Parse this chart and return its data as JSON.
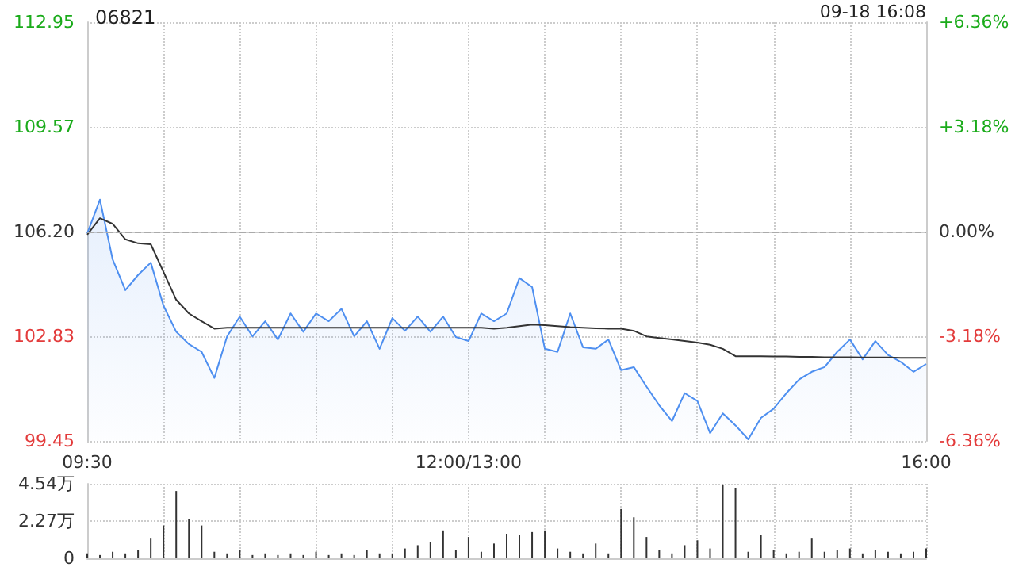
{
  "chart_data": [
    {
      "type": "line",
      "title": "06821",
      "annotations": [
        "09-18 16:08"
      ],
      "categories": [
        "09:30",
        null,
        null,
        null,
        null,
        null,
        null,
        null,
        null,
        null,
        null,
        null,
        null,
        null,
        null,
        null,
        null,
        null,
        null,
        null,
        null,
        null,
        null,
        null,
        null,
        null,
        null,
        null,
        null,
        null,
        "12:00/13:00",
        null,
        null,
        null,
        null,
        null,
        null,
        null,
        null,
        null,
        null,
        null,
        null,
        null,
        null,
        null,
        null,
        null,
        null,
        null,
        null,
        null,
        null,
        null,
        null,
        null,
        null,
        null,
        null,
        null,
        null,
        null,
        null,
        null,
        null,
        null,
        "16:00"
      ],
      "ylim": [
        99.45,
        112.95
      ],
      "yticks": [
        99.45,
        102.83,
        {
          "value": 106.2,
          "label": "106.20"
        },
        109.57,
        112.95
      ],
      "y2lim": [
        -6.36,
        6.36
      ],
      "y2ticks": [
        {
          "value": -6.36,
          "label": "-6.36%"
        },
        {
          "value": -3.18,
          "label": "-3.18%"
        },
        {
          "value": 0,
          "label": "0.00%"
        },
        {
          "value": 3.18,
          "label": "+3.18%"
        },
        {
          "value": 6.36,
          "label": "+6.36%"
        }
      ],
      "ref_lines": [
        {
          "axis": "y",
          "value": 106.2,
          "line_style": "dashed",
          "color": "#aaaaaa"
        }
      ],
      "grid": true,
      "marker": "none",
      "series": [
        {
          "type": "area",
          "color": "#4e8ff0",
          "values": [
            106.14,
            107.23,
            105.3,
            104.31,
            104.8,
            105.2,
            103.81,
            102.97,
            102.57,
            102.32,
            101.48,
            102.82,
            103.46,
            102.82,
            103.31,
            102.72,
            103.56,
            102.97,
            103.56,
            103.31,
            103.71,
            102.82,
            103.31,
            102.42,
            103.41,
            103.0,
            103.46,
            102.97,
            103.46,
            102.8,
            102.67,
            103.56,
            103.31,
            103.56,
            104.7,
            104.41,
            102.42,
            102.32,
            103.56,
            102.47,
            102.42,
            102.72,
            101.73,
            101.83,
            101.2,
            100.6,
            100.09,
            100.99,
            100.74,
            99.7,
            100.34,
            99.95,
            99.5,
            100.19,
            100.49,
            100.99,
            101.43,
            101.68,
            101.83,
            102.32,
            102.72,
            102.08,
            102.67,
            102.22,
            102.0,
            101.68,
            101.93
          ]
        },
        {
          "type": "line",
          "color": "#333333",
          "values": [
            106.1,
            106.63,
            106.45,
            105.95,
            105.82,
            105.79,
            104.9,
            104.0,
            103.56,
            103.31,
            103.07,
            103.1,
            103.1,
            103.1,
            103.1,
            103.1,
            103.1,
            103.1,
            103.1,
            103.1,
            103.1,
            103.1,
            103.1,
            103.1,
            103.1,
            103.1,
            103.1,
            103.1,
            103.1,
            103.1,
            103.1,
            103.1,
            103.07,
            103.1,
            103.15,
            103.2,
            103.18,
            103.15,
            103.12,
            103.1,
            103.08,
            103.07,
            103.07,
            103.0,
            102.82,
            102.77,
            102.72,
            102.67,
            102.62,
            102.55,
            102.42,
            102.18,
            102.18,
            102.18,
            102.17,
            102.17,
            102.16,
            102.16,
            102.15,
            102.15,
            102.15,
            102.14,
            102.14,
            102.14,
            102.13,
            102.13,
            102.13
          ]
        }
      ]
    },
    {
      "type": "bar",
      "color": "#333333",
      "categories": [
        null,
        null,
        null,
        null,
        null,
        null,
        null,
        null,
        null,
        null,
        null,
        null,
        null,
        null,
        null,
        null,
        null,
        null,
        null,
        null,
        null,
        null,
        null,
        null,
        null,
        null,
        null,
        null,
        null,
        null,
        null,
        null,
        null,
        null,
        null,
        null,
        null,
        null,
        null,
        null,
        null,
        null,
        null,
        null,
        null,
        null,
        null,
        null,
        null,
        null,
        null,
        null,
        null,
        null,
        null,
        null,
        null,
        null,
        null,
        null,
        null,
        null,
        null,
        null,
        null,
        null,
        null
      ],
      "grid": true,
      "ylim": [
        0,
        4.54
      ],
      "yticks": [
        0,
        {
          "value": 2.27,
          "label": "2.27万"
        },
        {
          "value": 4.54,
          "label": "4.54万"
        }
      ],
      "values": [
        0.3,
        0.2,
        0.4,
        0.3,
        0.5,
        1.2,
        2.0,
        4.1,
        2.4,
        2.0,
        0.4,
        0.3,
        0.5,
        0.2,
        0.3,
        0.2,
        0.3,
        0.2,
        0.4,
        0.2,
        0.3,
        0.2,
        0.5,
        0.3,
        0.3,
        0.6,
        0.8,
        1.0,
        1.7,
        0.5,
        1.3,
        0.4,
        0.9,
        1.5,
        1.4,
        1.6,
        1.7,
        0.6,
        0.4,
        0.3,
        0.9,
        0.3,
        3.0,
        2.5,
        1.3,
        0.5,
        0.3,
        0.8,
        1.1,
        0.6,
        4.5,
        4.3,
        0.4,
        1.4,
        0.5,
        0.3,
        0.4,
        1.2,
        0.4,
        0.5,
        0.6,
        0.3,
        0.5,
        0.4,
        0.3,
        0.4,
        0.6
      ]
    }
  ]
}
